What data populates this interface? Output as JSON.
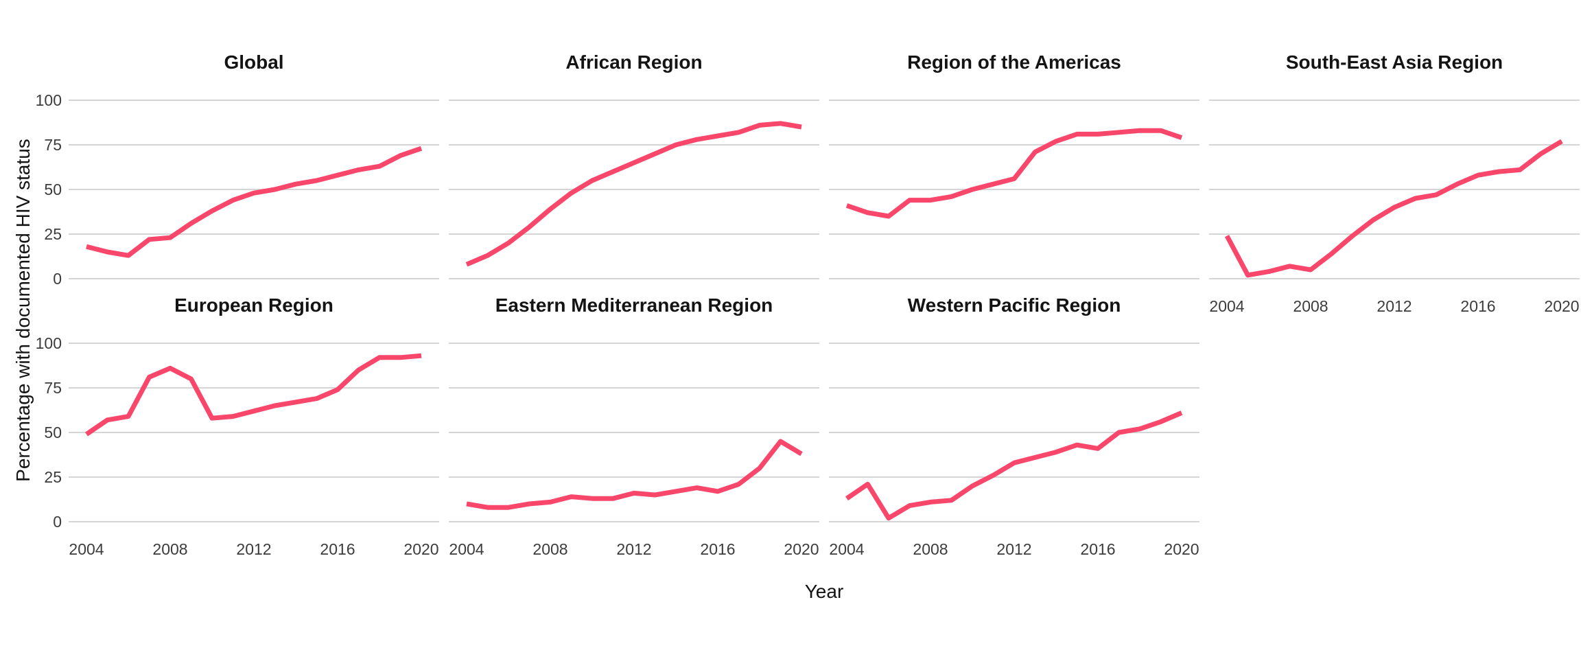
{
  "figure": {
    "y_axis_label": "Percentage with documented HIV status",
    "x_axis_label": "Year",
    "colors": {
      "line": "#F8476B",
      "grid": "#D5D5D5",
      "axis_text": "#3C3C3C",
      "title_text": "#141414",
      "background": "#FFFFFF"
    }
  },
  "chart_data": {
    "type": "line",
    "title": "",
    "xlabel": "Year",
    "ylabel": "Percentage with documented HIV status",
    "x": [
      2004,
      2005,
      2006,
      2007,
      2008,
      2009,
      2010,
      2011,
      2012,
      2013,
      2014,
      2015,
      2016,
      2017,
      2018,
      2019,
      2020
    ],
    "x_ticks": [
      "2004",
      "2008",
      "2012",
      "2016",
      "2020"
    ],
    "x_tick_values": [
      2004,
      2008,
      2012,
      2016,
      2020
    ],
    "y_ticks": [
      "0",
      "25",
      "50",
      "75",
      "100"
    ],
    "y_tick_values": [
      0,
      25,
      50,
      75,
      100
    ],
    "ylim": [
      0,
      100
    ],
    "grid": "horizontal-major-only",
    "legend": "none",
    "facet_layout": {
      "rows": 2,
      "cols": 4
    },
    "facets": [
      {
        "title": "Global",
        "show_x_axis": false,
        "values": [
          18,
          15,
          13,
          22,
          23,
          31,
          38,
          44,
          48,
          50,
          53,
          55,
          58,
          61,
          63,
          69,
          73
        ]
      },
      {
        "title": "African Region",
        "show_x_axis": false,
        "values": [
          8,
          13,
          20,
          29,
          39,
          48,
          55,
          60,
          65,
          70,
          75,
          78,
          80,
          82,
          86,
          87,
          85
        ]
      },
      {
        "title": "Region of the Americas",
        "show_x_axis": false,
        "values": [
          41,
          37,
          35,
          44,
          44,
          46,
          50,
          53,
          56,
          71,
          77,
          81,
          81,
          82,
          83,
          83,
          79
        ]
      },
      {
        "title": "South-East Asia Region",
        "show_x_axis": true,
        "values": [
          24,
          2,
          4,
          7,
          5,
          14,
          24,
          33,
          40,
          45,
          47,
          53,
          58,
          60,
          61,
          70,
          77
        ]
      },
      {
        "title": "European Region",
        "show_x_axis": true,
        "values": [
          49,
          57,
          59,
          81,
          86,
          80,
          58,
          59,
          62,
          65,
          67,
          69,
          74,
          85,
          92,
          92,
          93
        ]
      },
      {
        "title": "Eastern Mediterranean Region",
        "show_x_axis": true,
        "values": [
          10,
          8,
          8,
          10,
          11,
          14,
          13,
          13,
          16,
          15,
          17,
          19,
          17,
          21,
          30,
          45,
          38
        ]
      },
      {
        "title": "Western Pacific Region",
        "show_x_axis": true,
        "values": [
          13,
          21,
          2,
          9,
          11,
          12,
          20,
          26,
          33,
          36,
          39,
          43,
          41,
          50,
          52,
          56,
          61
        ]
      }
    ]
  }
}
